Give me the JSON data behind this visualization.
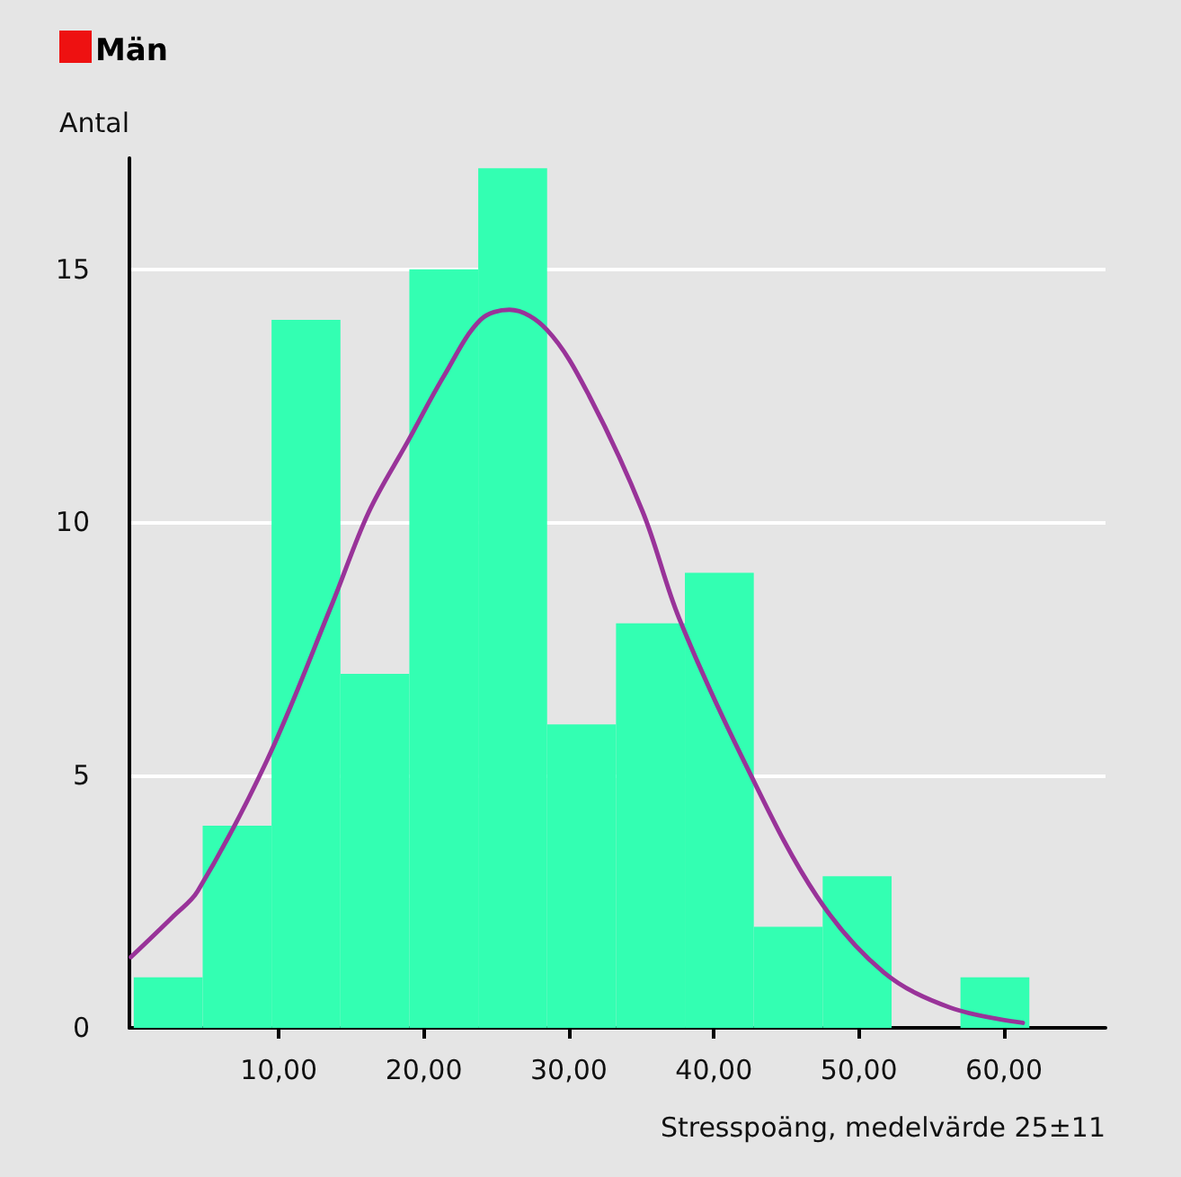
{
  "chart_data": {
    "type": "histogram",
    "title": "Män",
    "xlabel": "Stresspoäng, medelvärde 25±11",
    "ylabel": "Antal",
    "bins": [
      0,
      4.75,
      9.5,
      14.25,
      19,
      23.75,
      28.5,
      33.25,
      38,
      42.75,
      47.5,
      52.25,
      57,
      61.75
    ],
    "series": [
      {
        "color": "#33ffb2",
        "values": [
          1,
          4,
          14,
          7,
          15,
          17,
          6,
          8,
          9,
          2,
          3,
          0,
          1
        ]
      },
      {
        "type": "line",
        "color": "#993399",
        "x": [
          -0.2,
          2.7,
          4.4,
          9.2,
          13.7,
          16.2,
          18.9,
          21.4,
          23.9,
          25.9,
          28.5,
          31.4,
          35.1,
          37.6,
          42.2,
          47.1,
          51.7,
          56.3,
          61.3
        ],
        "values": [
          1.4,
          2.2,
          2.7,
          5.3,
          8.4,
          10.2,
          11.6,
          12.9,
          14,
          14.2,
          13.8,
          12.5,
          10.2,
          8.1,
          5.2,
          2.6,
          1.1,
          0.4,
          0.1
        ]
      }
    ],
    "xlim": [
      -0.3,
      67
    ],
    "xticks": [
      {
        "value": 10,
        "label": "10,00"
      },
      {
        "value": 20,
        "label": "20,00"
      },
      {
        "value": 30,
        "label": "30,00"
      },
      {
        "value": 40,
        "label": "40,00"
      },
      {
        "value": 50,
        "label": "50,00"
      },
      {
        "value": 60,
        "label": "60,00"
      }
    ],
    "ylim": [
      0,
      17.2
    ],
    "yticks": [
      0,
      5,
      10,
      15
    ],
    "grid": "y",
    "marker": "none",
    "line_style": "solid"
  }
}
